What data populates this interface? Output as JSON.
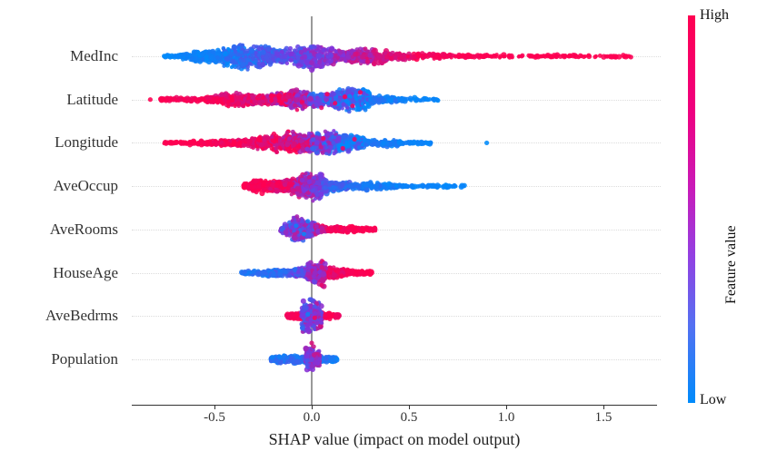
{
  "chart_data": {
    "type": "scatter",
    "variant": "shap-beeswarm-summary",
    "title": "",
    "xlabel": "SHAP value (impact on model output)",
    "x_domain": [
      -0.93,
      1.78
    ],
    "x_ticks": [
      {
        "v": -0.5,
        "label": "-0.5"
      },
      {
        "v": 0.0,
        "label": "0.0"
      },
      {
        "v": 0.5,
        "label": "0.5"
      },
      {
        "v": 1.0,
        "label": "1.0"
      },
      {
        "v": 1.5,
        "label": "1.5"
      }
    ],
    "grid": "dotted-row-lines",
    "zero_reference_line": true,
    "colors": {
      "low": "#008bfb",
      "mid": "#7d35e0",
      "high": "#ff0051",
      "zero_line": "#999999",
      "axis": "#333333",
      "gridline": "#dcdcdc"
    },
    "colorbar": {
      "high": "High",
      "low": "Low",
      "title": "Feature value",
      "gradient": [
        {
          "color": "#ff0051",
          "pos": 0
        },
        {
          "color": "#ef0080",
          "pos": 25
        },
        {
          "color": "#c81bba",
          "pos": 45
        },
        {
          "color": "#9340e2",
          "pos": 62
        },
        {
          "color": "#5470f2",
          "pos": 80
        },
        {
          "color": "#008bfb",
          "pos": 100
        }
      ]
    },
    "features": [
      {
        "name": "MedInc",
        "seed": 1,
        "shap_min": -0.76,
        "shap_max": 1.67,
        "correlation": "high value -> positive SHAP",
        "segments": [
          {
            "v0": -0.76,
            "v1": -0.62,
            "n": 45,
            "h0": 1.5,
            "h1": 5,
            "t0": 0.02,
            "t1": 0.06,
            "jt": 0.05
          },
          {
            "v0": -0.62,
            "v1": -0.45,
            "n": 130,
            "h0": 5,
            "h1": 17,
            "t0": 0.03,
            "t1": 0.1,
            "jt": 0.07
          },
          {
            "v0": -0.45,
            "v1": -0.18,
            "n": 330,
            "h0": 17,
            "h1": 16,
            "t0": 0.08,
            "t1": 0.32,
            "jt": 0.15
          },
          {
            "v0": -0.18,
            "v1": 0.08,
            "n": 300,
            "h0": 16,
            "h1": 15,
            "t0": 0.3,
            "t1": 0.55,
            "jt": 0.18
          },
          {
            "v0": 0.08,
            "v1": 0.32,
            "n": 220,
            "h0": 15,
            "h1": 10,
            "t0": 0.55,
            "t1": 0.8,
            "jt": 0.15
          },
          {
            "v0": 0.32,
            "v1": 0.55,
            "n": 120,
            "h0": 10,
            "h1": 5,
            "t0": 0.8,
            "t1": 0.95,
            "jt": 0.08
          },
          {
            "v0": 0.55,
            "v1": 0.9,
            "n": 80,
            "h0": 4,
            "h1": 2.5,
            "t0": 0.95,
            "t1": 1.0,
            "jt": 0.04
          },
          {
            "v0": 0.9,
            "v1": 1.4,
            "n": 70,
            "h0": 2.2,
            "h1": 1.8,
            "t0": 1.0,
            "t1": 1.0,
            "jt": 0.02
          },
          {
            "v0": 1.4,
            "v1": 1.67,
            "n": 30,
            "h0": 1.8,
            "h1": 1.2,
            "t0": 1.0,
            "t1": 1.0,
            "jt": 0.02
          }
        ],
        "extra_dots": []
      },
      {
        "name": "Latitude",
        "seed": 2,
        "shap_min": -0.83,
        "shap_max": 0.65,
        "correlation": "high value -> negative SHAP",
        "segments": [
          {
            "v0": -0.78,
            "v1": -0.55,
            "n": 70,
            "h0": 2,
            "h1": 4,
            "t0": 0.98,
            "t1": 0.95,
            "jt": 0.05
          },
          {
            "v0": -0.55,
            "v1": -0.33,
            "n": 180,
            "h0": 4,
            "h1": 11,
            "t0": 0.95,
            "t1": 0.88,
            "jt": 0.1
          },
          {
            "v0": -0.33,
            "v1": -0.22,
            "n": 120,
            "h0": 11,
            "h1": 8,
            "t0": 0.9,
            "t1": 0.85,
            "jt": 0.12
          },
          {
            "v0": -0.22,
            "v1": -0.02,
            "n": 260,
            "h0": 8,
            "h1": 13,
            "t0": 0.85,
            "t1": 0.68,
            "jt": 0.25
          },
          {
            "v0": -0.02,
            "v1": 0.3,
            "n": 380,
            "h0": 13,
            "h1": 15,
            "t0": 0.42,
            "t1": 0.15,
            "jt": 0.28
          },
          {
            "v0": 0.3,
            "v1": 0.45,
            "n": 90,
            "h0": 8,
            "h1": 4,
            "t0": 0.12,
            "t1": 0.06,
            "jt": 0.1
          },
          {
            "v0": 0.45,
            "v1": 0.65,
            "n": 35,
            "h0": 2.5,
            "h1": 1.8,
            "t0": 0.05,
            "t1": 0.03,
            "jt": 0.04
          }
        ],
        "extra_dots": [
          {
            "v": -0.83,
            "dy": 0,
            "t": 1.0
          },
          {
            "v": 0.08,
            "dy": -6,
            "t": 0.97
          },
          {
            "v": 0.12,
            "dy": 4,
            "t": 0.95
          },
          {
            "v": 0.17,
            "dy": -3,
            "t": 0.98
          },
          {
            "v": 0.21,
            "dy": 7,
            "t": 0.93
          },
          {
            "v": 0.25,
            "dy": -8,
            "t": 0.96
          },
          {
            "v": 0.05,
            "dy": 9,
            "t": 0.9
          }
        ]
      },
      {
        "name": "Longitude",
        "seed": 3,
        "shap_min": -0.76,
        "shap_max": 0.9,
        "correlation": "high value -> negative SHAP",
        "segments": [
          {
            "v0": -0.76,
            "v1": -0.5,
            "n": 80,
            "h0": 2,
            "h1": 3.5,
            "t0": 1.0,
            "t1": 0.98,
            "jt": 0.03
          },
          {
            "v0": -0.5,
            "v1": -0.28,
            "n": 150,
            "h0": 3.5,
            "h1": 8,
            "t0": 0.98,
            "t1": 0.92,
            "jt": 0.08
          },
          {
            "v0": -0.28,
            "v1": -0.13,
            "n": 160,
            "h0": 8,
            "h1": 13,
            "t0": 0.95,
            "t1": 0.85,
            "jt": 0.15
          },
          {
            "v0": -0.13,
            "v1": 0.0,
            "n": 270,
            "h0": 19,
            "h1": 20,
            "t0": 0.9,
            "t1": 0.68,
            "jt": 0.25
          },
          {
            "v0": 0.0,
            "v1": 0.13,
            "n": 240,
            "h0": 14,
            "h1": 13,
            "t0": 0.52,
            "t1": 0.32,
            "jt": 0.33
          },
          {
            "v0": 0.13,
            "v1": 0.27,
            "n": 200,
            "h0": 13,
            "h1": 12,
            "t0": 0.25,
            "t1": 0.13,
            "jt": 0.28
          },
          {
            "v0": 0.27,
            "v1": 0.45,
            "n": 90,
            "h0": 7,
            "h1": 3.5,
            "t0": 0.1,
            "t1": 0.05,
            "jt": 0.08
          },
          {
            "v0": 0.45,
            "v1": 0.62,
            "n": 40,
            "h0": 2.5,
            "h1": 2,
            "t0": 0.05,
            "t1": 0.03,
            "jt": 0.04
          }
        ],
        "extra_dots": [
          {
            "v": 0.9,
            "dy": 0,
            "t": 0.0
          },
          {
            "v": 0.06,
            "dy": -5,
            "t": 0.95
          },
          {
            "v": 0.16,
            "dy": 6,
            "t": 0.92
          },
          {
            "v": 0.22,
            "dy": -4,
            "t": 0.9
          }
        ]
      },
      {
        "name": "AveOccup",
        "seed": 4,
        "shap_min": -0.35,
        "shap_max": 0.79,
        "correlation": "high value -> negative SHAP",
        "segments": [
          {
            "v0": -0.35,
            "v1": -0.25,
            "n": 90,
            "h0": 2.5,
            "h1": 10,
            "t0": 1.0,
            "t1": 0.98,
            "jt": 0.04
          },
          {
            "v0": -0.25,
            "v1": -0.08,
            "n": 260,
            "h0": 10,
            "h1": 13,
            "t0": 0.98,
            "t1": 0.82,
            "jt": 0.12
          },
          {
            "v0": -0.08,
            "v1": 0.06,
            "n": 230,
            "h0": 15,
            "h1": 16,
            "t0": 0.72,
            "t1": 0.42,
            "jt": 0.22
          },
          {
            "v0": 0.06,
            "v1": 0.2,
            "n": 180,
            "h0": 12,
            "h1": 8,
            "t0": 0.32,
            "t1": 0.16,
            "jt": 0.15
          },
          {
            "v0": 0.2,
            "v1": 0.45,
            "n": 130,
            "h0": 6,
            "h1": 3,
            "t0": 0.14,
            "t1": 0.06,
            "jt": 0.08
          },
          {
            "v0": 0.45,
            "v1": 0.79,
            "n": 65,
            "h0": 2.5,
            "h1": 1.8,
            "t0": 0.05,
            "t1": 0.02,
            "jt": 0.03
          }
        ],
        "extra_dots": []
      },
      {
        "name": "AveRooms",
        "seed": 5,
        "shap_min": -0.16,
        "shap_max": 0.33,
        "correlation": "mixed, high value -> positive tail",
        "segments": [
          {
            "v0": -0.16,
            "v1": -0.1,
            "n": 70,
            "h0": 3,
            "h1": 11,
            "t0": 0.45,
            "t1": 0.42,
            "jt": 0.25
          },
          {
            "v0": -0.1,
            "v1": 0.02,
            "n": 230,
            "h0": 16,
            "h1": 13,
            "t0": 0.45,
            "t1": 0.52,
            "jt": 0.3
          },
          {
            "v0": 0.02,
            "v1": 0.08,
            "n": 90,
            "h0": 10,
            "h1": 6,
            "t0": 0.7,
            "t1": 0.9,
            "jt": 0.2
          },
          {
            "v0": 0.08,
            "v1": 0.33,
            "n": 160,
            "h0": 4.5,
            "h1": 3,
            "t0": 0.97,
            "t1": 1.0,
            "jt": 0.04
          }
        ],
        "extra_dots": [
          {
            "v": -0.04,
            "dy": 5,
            "t": 0.04
          },
          {
            "v": -0.08,
            "dy": -4,
            "t": 0.06
          },
          {
            "v": -0.02,
            "dy": -9,
            "t": 0.08
          }
        ]
      },
      {
        "name": "HouseAge",
        "seed": 6,
        "shap_min": -0.36,
        "shap_max": 0.31,
        "correlation": "high value -> positive SHAP",
        "segments": [
          {
            "v0": -0.36,
            "v1": -0.25,
            "n": 55,
            "h0": 2.5,
            "h1": 3.5,
            "t0": 0.12,
            "t1": 0.15,
            "jt": 0.08
          },
          {
            "v0": -0.25,
            "v1": -0.1,
            "n": 140,
            "h0": 3.5,
            "h1": 5.5,
            "t0": 0.15,
            "t1": 0.25,
            "jt": 0.12
          },
          {
            "v0": -0.1,
            "v1": -0.02,
            "n": 140,
            "h0": 6,
            "h1": 12,
            "t0": 0.3,
            "t1": 0.48,
            "jt": 0.2
          },
          {
            "v0": 0.07,
            "v1": 0.18,
            "n": 130,
            "h0": 7,
            "h1": 5,
            "t0": 0.9,
            "t1": 0.97,
            "jt": 0.08
          },
          {
            "v0": 0.18,
            "v1": 0.31,
            "n": 90,
            "h0": 4.5,
            "h1": 3,
            "t0": 0.98,
            "t1": 1.0,
            "jt": 0.03
          },
          {
            "v0": -0.02,
            "v1": 0.07,
            "n": 210,
            "h0": 18,
            "h1": 16,
            "t0": 0.5,
            "t1": 0.75,
            "jt": 0.22
          }
        ],
        "extra_dots": []
      },
      {
        "name": "AveBedrms",
        "seed": 7,
        "shap_min": -0.13,
        "shap_max": 0.14,
        "correlation": "mixed",
        "segments": [
          {
            "v0": -0.13,
            "v1": -0.04,
            "n": 85,
            "h0": 4,
            "h1": 5,
            "t0": 0.97,
            "t1": 1.0,
            "jt": 0.05
          },
          {
            "v0": 0.04,
            "v1": 0.14,
            "n": 85,
            "h0": 5,
            "h1": 4,
            "t0": 1.0,
            "t1": 0.97,
            "jt": 0.05
          },
          {
            "v0": -0.05,
            "v1": 0.05,
            "n": 230,
            "h0": 20,
            "h1": 18,
            "t0": 0.42,
            "t1": 0.6,
            "jt": 0.25
          }
        ],
        "extra_dots": [
          {
            "v": -0.02,
            "dy": -2,
            "t": 0.05
          },
          {
            "v": 0.015,
            "dy": 2,
            "t": 0.95
          }
        ]
      },
      {
        "name": "Population",
        "seed": 8,
        "shap_min": -0.21,
        "shap_max": 0.13,
        "correlation": "mostly low values near zero",
        "segments": [
          {
            "v0": -0.21,
            "v1": -0.12,
            "n": 80,
            "h0": 4,
            "h1": 5.5,
            "t0": 0.12,
            "t1": 0.18,
            "jt": 0.1
          },
          {
            "v0": -0.12,
            "v1": -0.03,
            "n": 95,
            "h0": 5,
            "h1": 4.5,
            "t0": 0.15,
            "t1": 0.2,
            "jt": 0.1
          },
          {
            "v0": 0.04,
            "v1": 0.13,
            "n": 85,
            "h0": 5.5,
            "h1": 4,
            "t0": 0.15,
            "t1": 0.1,
            "jt": 0.08
          },
          {
            "v0": -0.03,
            "v1": 0.04,
            "n": 190,
            "h0": 21,
            "h1": 19,
            "t0": 0.45,
            "t1": 0.65,
            "jt": 0.2
          }
        ],
        "extra_dots": [
          {
            "v": 0.0,
            "dy": -18,
            "t": 0.85
          },
          {
            "v": 0.01,
            "dy": -14,
            "t": 0.8
          }
        ]
      }
    ]
  }
}
